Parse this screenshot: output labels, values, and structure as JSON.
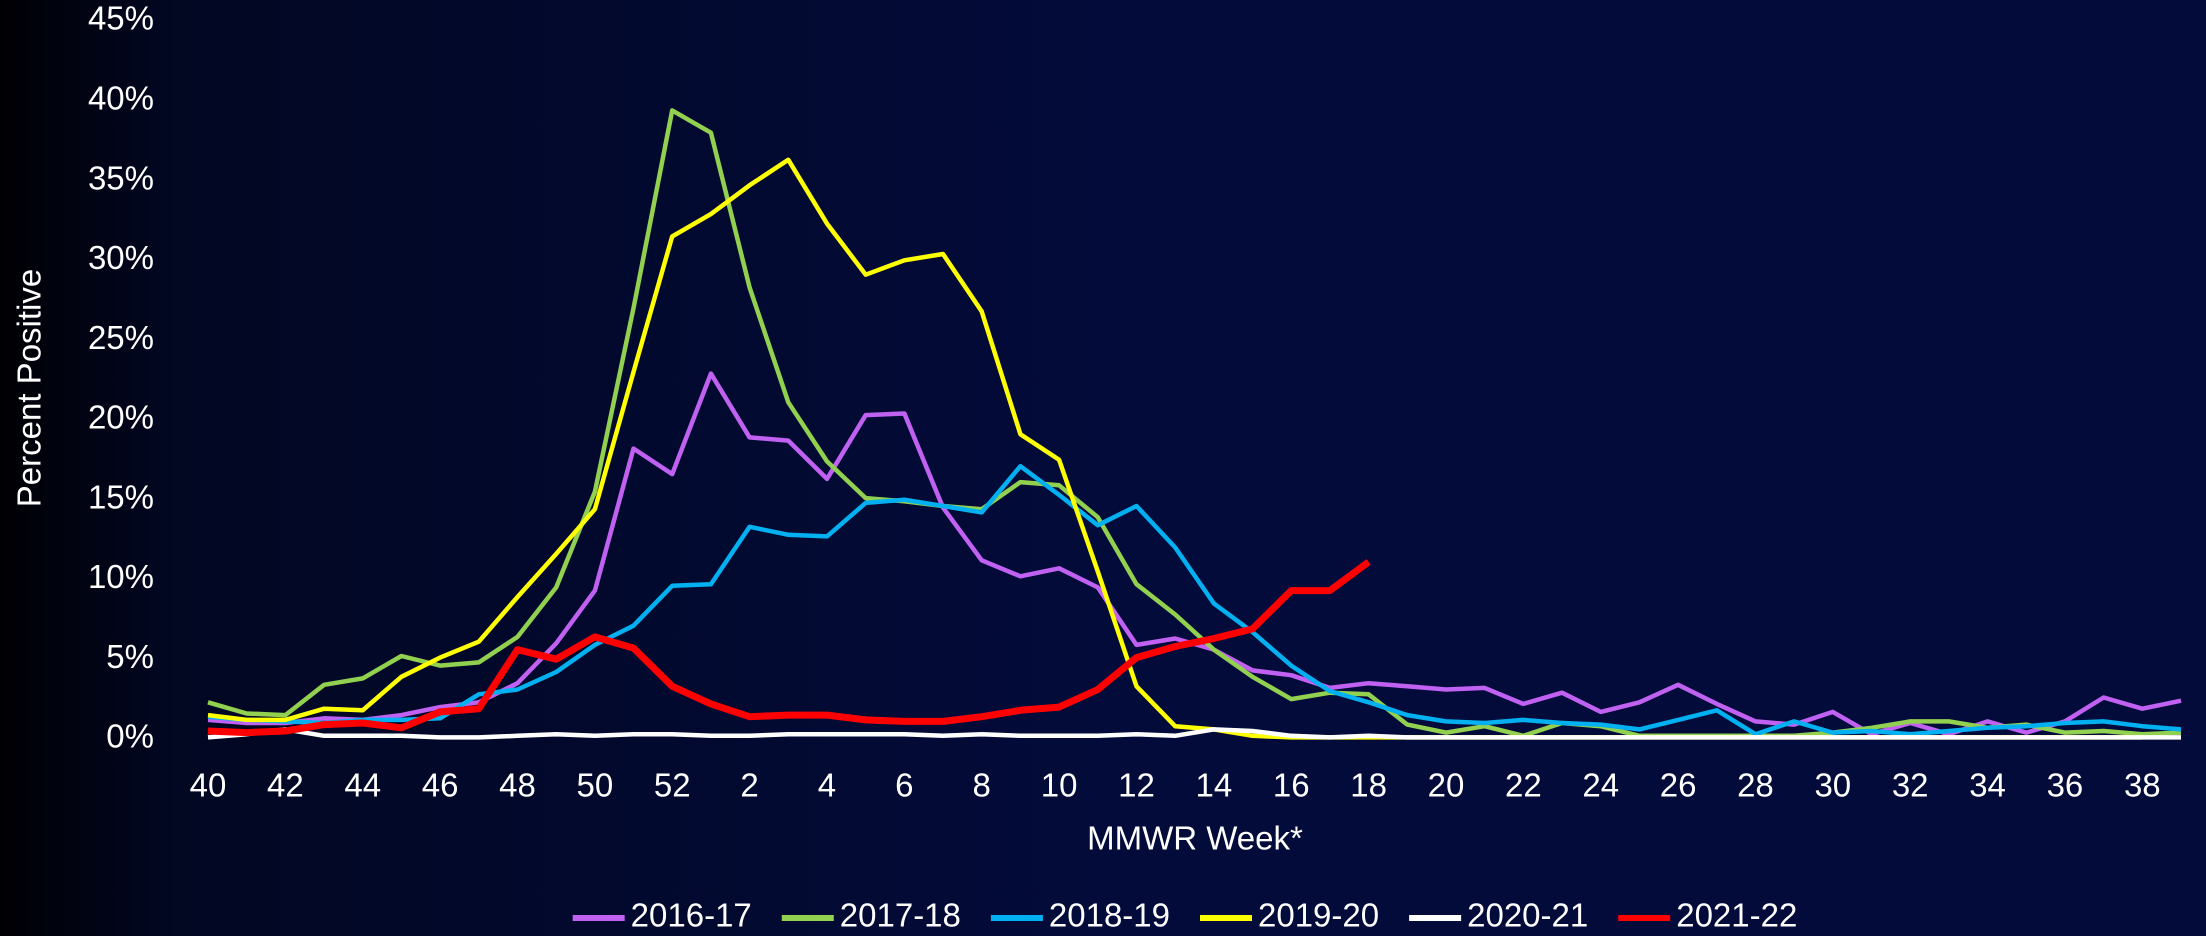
{
  "chart_data": {
    "type": "line",
    "y_label": "Percent Positive",
    "x_label": "MMWR Week*",
    "categories": [
      "40",
      null,
      "42",
      null,
      "44",
      null,
      "46",
      null,
      "48",
      null,
      "50",
      null,
      "52",
      null,
      "2",
      null,
      "4",
      null,
      "6",
      null,
      "8",
      null,
      "10",
      null,
      "12",
      null,
      "14",
      null,
      "16",
      null,
      "18",
      null,
      "20",
      null,
      "22",
      null,
      "24",
      null,
      "26",
      null,
      "28",
      null,
      "30",
      null,
      "32",
      null,
      "34",
      null,
      "36",
      null,
      "38",
      null
    ],
    "ylim": [
      0,
      45
    ],
    "yticks": [
      {
        "value": 0,
        "label": "0%"
      },
      {
        "value": 5,
        "label": "5%"
      },
      {
        "value": 10,
        "label": "10%"
      },
      {
        "value": 15,
        "label": "15%"
      },
      {
        "value": 20,
        "label": "20%"
      },
      {
        "value": 25,
        "label": "25%"
      },
      {
        "value": 30,
        "label": "30%"
      },
      {
        "value": 35,
        "label": "35%"
      },
      {
        "value": 40,
        "label": "40%"
      },
      {
        "value": 45,
        "label": "45%"
      }
    ],
    "grid": false,
    "legend": "bottom",
    "series": [
      {
        "name": "2016-17",
        "color": "#c061f2",
        "values": [
          1.2,
          1.0,
          1.0,
          1.3,
          1.2,
          1.5,
          2.0,
          2.3,
          3.5,
          6.0,
          9.3,
          18.2,
          16.6,
          22.9,
          18.9,
          18.7,
          16.3,
          20.3,
          20.4,
          14.5,
          11.2,
          10.2,
          10.7,
          9.5,
          5.9,
          6.3,
          5.6,
          4.3,
          4.0,
          3.2,
          3.5,
          3.3,
          3.1,
          3.2,
          2.2,
          2.9,
          1.7,
          2.3,
          3.4,
          2.2,
          1.1,
          0.9,
          1.7,
          0.3,
          1.0,
          0.3,
          1.1,
          0.4,
          1.1,
          2.6,
          1.9,
          2.4
        ]
      },
      {
        "name": "2017-18",
        "color": "#92d050",
        "values": [
          2.3,
          1.6,
          1.5,
          3.4,
          3.8,
          5.2,
          4.6,
          4.8,
          6.4,
          9.5,
          15.5,
          27.0,
          39.4,
          38.0,
          28.3,
          21.1,
          17.4,
          15.1,
          14.9,
          14.6,
          14.4,
          16.1,
          15.9,
          13.9,
          9.7,
          7.8,
          5.6,
          3.9,
          2.5,
          2.9,
          2.8,
          0.9,
          0.4,
          0.8,
          0.2,
          1.0,
          0.8,
          0.2,
          0.2,
          0.2,
          0.2,
          0.2,
          0.4,
          0.7,
          1.1,
          1.1,
          0.7,
          0.9,
          0.4,
          0.5,
          0.3,
          0.4
        ]
      },
      {
        "name": "2018-19",
        "color": "#00b0f0",
        "values": [
          1.4,
          1.2,
          1.1,
          1.0,
          1.2,
          1.2,
          1.3,
          2.8,
          3.1,
          4.2,
          5.9,
          7.1,
          9.6,
          9.7,
          13.3,
          12.8,
          12.7,
          14.8,
          15.0,
          14.6,
          14.2,
          17.1,
          15.3,
          13.4,
          14.6,
          12.0,
          8.5,
          6.7,
          4.6,
          3.0,
          2.3,
          1.5,
          1.1,
          1.0,
          1.2,
          1.0,
          0.9,
          0.6,
          1.2,
          1.8,
          0.3,
          1.1,
          0.4,
          0.5,
          0.3,
          0.5,
          0.7,
          0.8,
          1.0,
          1.1,
          0.8,
          0.6
        ]
      },
      {
        "name": "2019-20",
        "color": "#ffff00",
        "values": [
          1.5,
          1.2,
          1.2,
          1.9,
          1.8,
          3.9,
          5.1,
          6.1,
          8.9,
          11.6,
          14.4,
          23.0,
          31.5,
          32.9,
          34.7,
          36.3,
          32.3,
          29.1,
          30.0,
          30.4,
          26.8,
          19.1,
          17.5,
          10.5,
          3.3,
          0.8,
          0.6,
          0.2,
          0.1,
          0.1,
          0.1,
          0.1,
          0.1,
          0.1,
          0.1,
          0.1,
          0.1,
          0.1,
          0.1,
          0.1,
          0.1,
          0.1,
          0.1,
          0.1,
          0.1,
          0.1,
          0.1,
          0.1,
          0.1,
          0.1,
          0.1,
          null
        ]
      },
      {
        "name": "2020-21",
        "color": "#ffffff",
        "values": [
          0.1,
          0.3,
          0.6,
          0.2,
          0.2,
          0.2,
          0.1,
          0.1,
          0.2,
          0.3,
          0.2,
          0.3,
          0.3,
          0.2,
          0.2,
          0.3,
          0.3,
          0.3,
          0.3,
          0.2,
          0.3,
          0.2,
          0.2,
          0.2,
          0.3,
          0.2,
          0.6,
          0.5,
          0.2,
          0.1,
          0.2,
          0.1,
          0.1,
          0.1,
          0.1,
          0.1,
          0.1,
          0.1,
          0.1,
          0.1,
          0.1,
          0.1,
          0.1,
          0.1,
          0.1,
          0.1,
          0.1,
          0.1,
          0.1,
          0.1,
          0.1,
          0.1
        ]
      },
      {
        "name": "2021-22",
        "color": "#ff0000",
        "values": [
          0.5,
          0.4,
          0.5,
          0.9,
          1.0,
          0.7,
          1.7,
          1.9,
          5.6,
          5.0,
          6.4,
          5.7,
          3.3,
          2.2,
          1.4,
          1.5,
          1.5,
          1.2,
          1.1,
          1.1,
          1.4,
          1.8,
          2.0,
          3.1,
          5.1,
          5.8,
          6.3,
          6.9,
          9.3,
          9.3,
          11.1,
          null,
          null,
          null,
          null,
          null,
          null,
          null,
          null,
          null,
          null,
          null,
          null,
          null,
          null,
          null,
          null,
          null,
          null,
          null,
          null,
          null
        ]
      }
    ]
  }
}
